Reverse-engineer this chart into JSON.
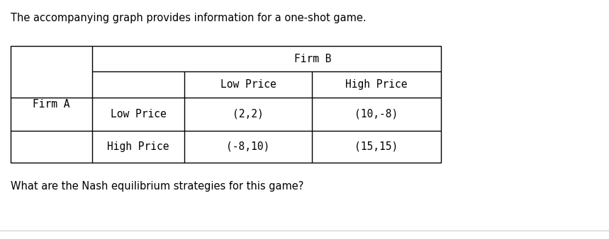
{
  "title": "The accompanying graph provides information for a one-shot game.",
  "question": "What are the Nash equilibrium strategies for this game?",
  "firm_b_label": "Firm B",
  "firm_a_label": "Firm A",
  "col_headers": [
    "Low Price",
    "High Price"
  ],
  "row_headers": [
    "Low Price",
    "High Price"
  ],
  "payoffs": [
    [
      "(2,2)",
      "(10,-8)"
    ],
    [
      "(-8,10)",
      "(15,15)"
    ]
  ],
  "font_family": "monospace",
  "title_fontsize": 10.5,
  "cell_fontsize": 10.5,
  "bg_color": "#ffffff",
  "border_color": "#000000",
  "text_color": "#000000"
}
